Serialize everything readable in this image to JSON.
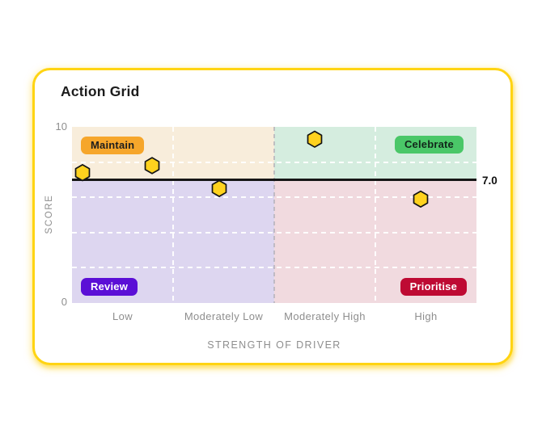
{
  "card": {
    "title": "Action Grid"
  },
  "chart_data": {
    "type": "scatter",
    "title": "Action Grid",
    "xlabel": "STRENGTH OF DRIVER",
    "ylabel": "SCORE",
    "ylim": [
      0,
      10
    ],
    "y_ticks": [
      "10",
      "0"
    ],
    "x_categories": [
      "Low",
      "Moderately Low",
      "Moderately High",
      "High"
    ],
    "grid": "white dashed horizontal lines at 2, 4, 6, 8; dashed vertical lines at category boundaries; gray dashed center divider",
    "legend_position": "none",
    "threshold": {
      "value": 7.0,
      "label": "7.0",
      "color": "#161616"
    },
    "quadrants": [
      {
        "name": "Maintain",
        "position": "top-left",
        "bg": "#F8EDDB",
        "badge_bg": "#F6A62B",
        "badge_text": "#1D1D1D"
      },
      {
        "name": "Celebrate",
        "position": "top-right",
        "bg": "#D5EDDF",
        "badge_bg": "#4AC768",
        "badge_text": "#12271A"
      },
      {
        "name": "Review",
        "position": "bottom-left",
        "bg": "#DDD6F0",
        "badge_bg": "#5B0FD6",
        "badge_text": "#FFFFFF"
      },
      {
        "name": "Prioritise",
        "position": "bottom-right",
        "bg": "#F1DADF",
        "badge_bg": "#BE0A33",
        "badge_text": "#FFFFFF"
      }
    ],
    "points": [
      {
        "x_frac": 0.026,
        "score": 7.4
      },
      {
        "x_frac": 0.198,
        "score": 7.8
      },
      {
        "x_frac": 0.364,
        "score": 6.5
      },
      {
        "x_frac": 0.6,
        "score": 9.3
      },
      {
        "x_frac": 0.862,
        "score": 5.9
      }
    ],
    "point_style": {
      "shape": "hexagon",
      "fill": "#FFD21E",
      "stroke": "#141414"
    }
  },
  "colors": {
    "page_bg": "#FFFFFF",
    "card_border": "#FFD412",
    "axis_text": "#8E8E8E",
    "title_text": "#1C1C1C"
  }
}
